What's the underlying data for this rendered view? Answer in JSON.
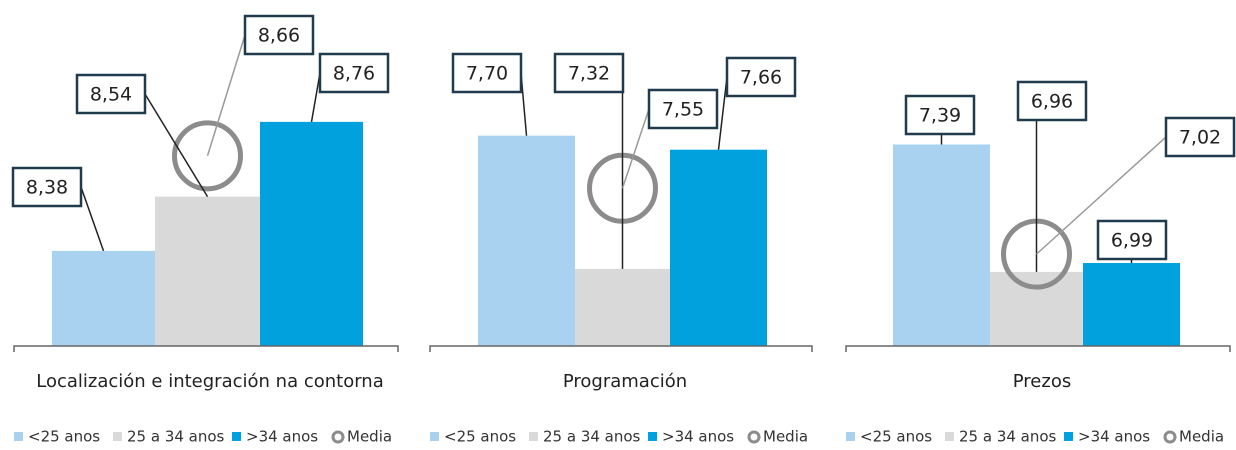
{
  "chart_data": [
    {
      "type": "bar",
      "categories": [
        "Localización e integración na contorna"
      ],
      "ylim": [
        8.1,
        9.06
      ],
      "series": [
        {
          "name": "<25 anos",
          "color": "#a8d2f0",
          "values": [
            8.38
          ],
          "value_labels": [
            "8,38"
          ]
        },
        {
          "name": "25 a 34 anos",
          "color": "#d9d9d9",
          "values": [
            8.54
          ],
          "value_labels": [
            "8,54"
          ]
        },
        {
          "name": ">34 anos",
          "color": "#00a1dd",
          "values": [
            8.76
          ],
          "value_labels": [
            "8,76"
          ]
        },
        {
          "name": "Media",
          "type": "marker",
          "color": "#8c8c8c",
          "values": [
            8.66
          ],
          "value_labels": [
            "8,66"
          ]
        }
      ]
    },
    {
      "type": "bar",
      "categories": [
        "Programación"
      ],
      "ylim": [
        7.1,
        8.03
      ],
      "series": [
        {
          "name": "<25 anos",
          "color": "#a8d2f0",
          "values": [
            7.7
          ],
          "value_labels": [
            "7,70"
          ]
        },
        {
          "name": "25 a 34 anos",
          "color": "#d9d9d9",
          "values": [
            7.32
          ],
          "value_labels": [
            "7,32"
          ]
        },
        {
          "name": ">34 anos",
          "color": "#00a1dd",
          "values": [
            7.66
          ],
          "value_labels": [
            "7,66"
          ]
        },
        {
          "name": "Media",
          "type": "marker",
          "color": "#8c8c8c",
          "values": [
            7.55
          ],
          "value_labels": [
            "7,55"
          ]
        }
      ]
    },
    {
      "type": "bar",
      "categories": [
        "Prezos"
      ],
      "ylim": [
        6.71,
        7.81
      ],
      "series": [
        {
          "name": "<25 anos",
          "color": "#a8d2f0",
          "values": [
            7.39
          ],
          "value_labels": [
            "7,39"
          ]
        },
        {
          "name": "25 a 34 anos",
          "color": "#d9d9d9",
          "values": [
            6.96
          ],
          "value_labels": [
            "6,96"
          ]
        },
        {
          "name": ">34 anos",
          "color": "#00a1dd",
          "values": [
            6.99
          ],
          "value_labels": [
            "6,99"
          ]
        },
        {
          "name": "Media",
          "type": "marker",
          "color": "#8c8c8c",
          "values": [
            7.02
          ],
          "value_labels": [
            "7,02"
          ]
        }
      ]
    }
  ]
}
